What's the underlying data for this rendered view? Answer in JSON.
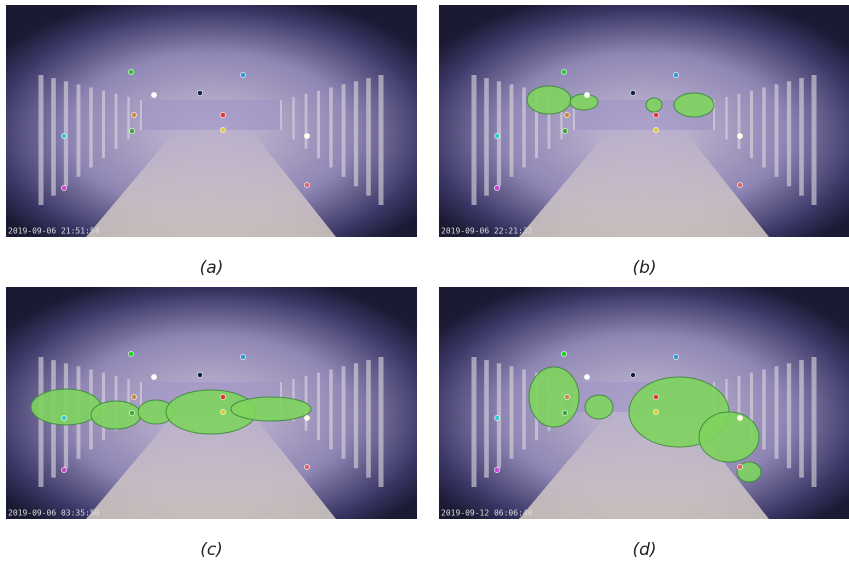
{
  "panels": [
    {
      "caption": "(a)",
      "timestamp": "2019-09-06 21:51:54"
    },
    {
      "caption": "(b)",
      "timestamp": "2019-09-06 22:21:32"
    },
    {
      "caption": "(c)",
      "timestamp": "2019-09-06 03:35:50"
    },
    {
      "caption": "(d)",
      "timestamp": "2019-09-12 06:06:40"
    }
  ]
}
